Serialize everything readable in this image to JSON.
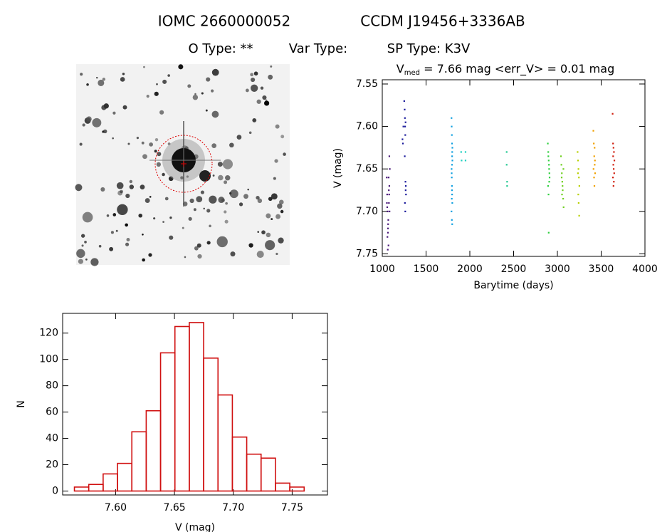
{
  "header": {
    "object_id": "IOMC 2660000052",
    "ccdm": "CCDM J19456+3336AB",
    "o_type": "O Type: **",
    "var_type": "Var Type:",
    "sp_type": "SP Type: K3V"
  },
  "chart_data": [
    {
      "type": "scatter",
      "title": {
        "symbol": "V",
        "subscript": "med",
        "rest": " = 7.66 mag <err_V> = 0.01 mag"
      },
      "xlabel": "Barytime (days)",
      "ylabel": "V (mag)",
      "xlim": [
        1000,
        4000
      ],
      "xticks": [
        1000,
        1500,
        2000,
        2500,
        3000,
        3500,
        4000
      ],
      "ylim": [
        7.753,
        7.545
      ],
      "yticks": [
        7.55,
        {
          "value": 7.6,
          "label": "7.60"
        },
        7.65,
        {
          "value": 7.7,
          "label": "7.70"
        },
        7.75
      ],
      "series": [
        {
          "color": "#4b1a7a",
          "x": [
            1050,
            1055,
            1060,
            1065,
            1070,
            1075,
            1080,
            1085,
            1058,
            1068,
            1078,
            1062,
            1072,
            1082,
            1052,
            1066,
            1080,
            1074,
            1056,
            1064
          ],
          "values": [
            7.66,
            7.68,
            7.7,
            7.72,
            7.74,
            7.69,
            7.67,
            7.65,
            7.73,
            7.71,
            7.68,
            7.745,
            7.66,
            7.7,
            7.69,
            7.715,
            7.635,
            7.675,
            7.695,
            7.725
          ]
        },
        {
          "color": "#1c1c9c",
          "x": [
            1230,
            1235,
            1240,
            1250,
            1255,
            1258,
            1260,
            1262,
            1265,
            1268,
            1270,
            1258,
            1262,
            1266,
            1256,
            1264
          ],
          "values": [
            7.615,
            7.62,
            7.6,
            7.57,
            7.58,
            7.59,
            7.6,
            7.61,
            7.595,
            7.67,
            7.68,
            7.69,
            7.7,
            7.675,
            7.635,
            7.665
          ]
        },
        {
          "color": "#10a0e0",
          "x": [
            1790,
            1792,
            1794,
            1796,
            1798,
            1800,
            1791,
            1793,
            1795,
            1797,
            1799,
            1790,
            1794,
            1798,
            1796,
            1792,
            1800,
            1795,
            1793,
            1797
          ],
          "values": [
            7.59,
            7.6,
            7.61,
            7.62,
            7.63,
            7.64,
            7.65,
            7.66,
            7.67,
            7.68,
            7.69,
            7.7,
            7.71,
            7.715,
            7.645,
            7.655,
            7.625,
            7.675,
            7.685,
            7.635
          ]
        },
        {
          "color": "#20d0c0",
          "x": [
            1900,
            1905,
            1950,
            1950
          ],
          "values": [
            7.63,
            7.64,
            7.63,
            7.64
          ]
        },
        {
          "color": "#20c890",
          "x": [
            2420,
            2420,
            2425,
            2425
          ],
          "values": [
            7.63,
            7.645,
            7.665,
            7.67
          ]
        },
        {
          "color": "#30d040",
          "x": [
            2890,
            2895,
            2900,
            2905,
            2910,
            2893,
            2898,
            2903,
            2908,
            2900,
            2896,
            2906
          ],
          "values": [
            7.62,
            7.63,
            7.64,
            7.65,
            7.66,
            7.67,
            7.68,
            7.645,
            7.655,
            7.725,
            7.635,
            7.665
          ]
        },
        {
          "color": "#70d020",
          "x": [
            3040,
            3045,
            3050,
            3055,
            3060,
            3065,
            3070,
            3048,
            3058,
            3068,
            3052
          ],
          "values": [
            7.635,
            7.645,
            7.655,
            7.665,
            7.675,
            7.685,
            7.695,
            7.66,
            7.67,
            7.65,
            7.68
          ]
        },
        {
          "color": "#b8d000",
          "x": [
            3230,
            3235,
            3240,
            3245,
            3250,
            3238,
            3242,
            3248,
            3234
          ],
          "values": [
            7.63,
            7.64,
            7.65,
            7.66,
            7.67,
            7.68,
            7.69,
            7.705,
            7.655
          ]
        },
        {
          "color": "#f0a000",
          "x": [
            3410,
            3415,
            3420,
            3425,
            3430,
            3418,
            3422,
            3428,
            3412,
            3424
          ],
          "values": [
            7.605,
            7.62,
            7.635,
            7.645,
            7.655,
            7.66,
            7.67,
            7.64,
            7.65,
            7.625
          ]
        },
        {
          "color": "#d02010",
          "x": [
            3630,
            3635,
            3640,
            3645,
            3650,
            3638,
            3642,
            3648,
            3634,
            3644,
            3640,
            3636
          ],
          "values": [
            7.585,
            7.62,
            7.625,
            7.63,
            7.64,
            7.645,
            7.65,
            7.655,
            7.66,
            7.665,
            7.67,
            7.635
          ]
        }
      ]
    },
    {
      "type": "histogram",
      "xlabel": "V (mag)",
      "ylabel": "N",
      "color": "#d01010",
      "bins": [
        7.565,
        7.5772,
        7.5894,
        7.6016,
        7.6138,
        7.626,
        7.6382,
        7.6504,
        7.6626,
        7.6748,
        7.687,
        7.6992,
        7.7114,
        7.7236,
        7.7358,
        7.748,
        7.7602
      ],
      "counts": [
        3,
        5,
        13,
        21,
        45,
        61,
        105,
        125,
        128,
        101,
        73,
        41,
        28,
        25,
        6,
        3
      ],
      "xlim": [
        7.555,
        7.78
      ],
      "xticks": [
        {
          "value": 7.6,
          "label": "7.60"
        },
        7.65,
        {
          "value": 7.7,
          "label": "7.70"
        },
        7.75
      ],
      "ylim": [
        -3,
        135
      ],
      "yticks": [
        0,
        20,
        40,
        60,
        80,
        100,
        120
      ]
    }
  ]
}
